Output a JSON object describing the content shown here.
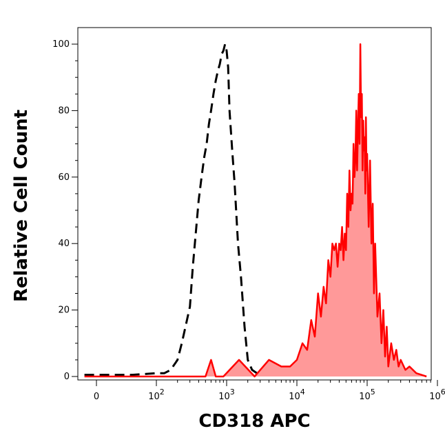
{
  "chart_data": {
    "type": "area",
    "title": "",
    "xlabel": "CD318 APC",
    "ylabel": "Relative Cell Count",
    "x_scale": "biexponential",
    "xlim": [
      -30,
      1300000
    ],
    "ylim": [
      0,
      104
    ],
    "x_ticks": [
      {
        "value": 0,
        "base": "0",
        "exp": ""
      },
      {
        "value": 100,
        "base": "10",
        "exp": "2"
      },
      {
        "value": 1000,
        "base": "10",
        "exp": "3"
      },
      {
        "value": 10000,
        "base": "10",
        "exp": "4"
      },
      {
        "value": 100000,
        "base": "10",
        "exp": "5"
      },
      {
        "value": 1000000,
        "base": "10",
        "exp": "6"
      }
    ],
    "y_ticks": [
      0,
      20,
      40,
      60,
      80,
      100
    ],
    "grid": false,
    "legend": "none",
    "series": [
      {
        "style": "dashed",
        "color": "#000000",
        "fill": "none",
        "x": [
          -20,
          20,
          60,
          100,
          130,
          160,
          200,
          230,
          260,
          300,
          330,
          370,
          400,
          440,
          480,
          520,
          560,
          600,
          650,
          700,
          750,
          800,
          850,
          900,
          950,
          1000,
          1050,
          1100,
          1200,
          1300,
          1450,
          1600,
          1800,
          2000,
          2300,
          2700,
          3200,
          4000,
          6000,
          10000
        ],
        "values": [
          0.5,
          0.5,
          0.5,
          1,
          1,
          2,
          5,
          10,
          15,
          21,
          33,
          45,
          53,
          60,
          66,
          70,
          76,
          80,
          85,
          89,
          92,
          94,
          97,
          98,
          100,
          98,
          93,
          80,
          68,
          58,
          40,
          30,
          15,
          5,
          2,
          1,
          0.5,
          1,
          0.5,
          0.5
        ]
      },
      {
        "style": "solid",
        "color": "#ff0000",
        "fill": "#ff9999",
        "x": [
          -20,
          200,
          400,
          500,
          600,
          700,
          900,
          1500,
          2500,
          4000,
          6000,
          8000,
          10000,
          12000,
          14000,
          16000,
          18000,
          20000,
          22000,
          24000,
          26000,
          28000,
          30000,
          32000,
          34000,
          36000,
          38000,
          40000,
          42000,
          44000,
          46000,
          48000,
          50000,
          52000,
          54000,
          56000,
          58000,
          60000,
          62000,
          64000,
          66000,
          68000,
          70000,
          72000,
          74000,
          76000,
          78000,
          80000,
          82000,
          84000,
          86000,
          88000,
          90000,
          92000,
          94000,
          96000,
          98000,
          100000,
          105000,
          110000,
          115000,
          120000,
          125000,
          130000,
          140000,
          150000,
          160000,
          170000,
          180000,
          190000,
          200000,
          220000,
          240000,
          260000,
          280000,
          300000,
          350000,
          400000,
          500000,
          700000,
          1000000,
          1200000
        ],
        "values": [
          0,
          0,
          0,
          0,
          5,
          0,
          0,
          5,
          0,
          5,
          3,
          3,
          5,
          10,
          8,
          17,
          12,
          25,
          18,
          27,
          22,
          35,
          30,
          40,
          38,
          40,
          33,
          40,
          38,
          45,
          35,
          43,
          38,
          55,
          45,
          62,
          50,
          55,
          52,
          70,
          60,
          65,
          80,
          62,
          75,
          85,
          70,
          100,
          78,
          85,
          62,
          77,
          68,
          72,
          55,
          78,
          62,
          67,
          45,
          65,
          40,
          52,
          25,
          40,
          18,
          25,
          10,
          20,
          6,
          15,
          3,
          10,
          5,
          8,
          3,
          5,
          2,
          3,
          1,
          0,
          1,
          3
        ]
      }
    ]
  }
}
